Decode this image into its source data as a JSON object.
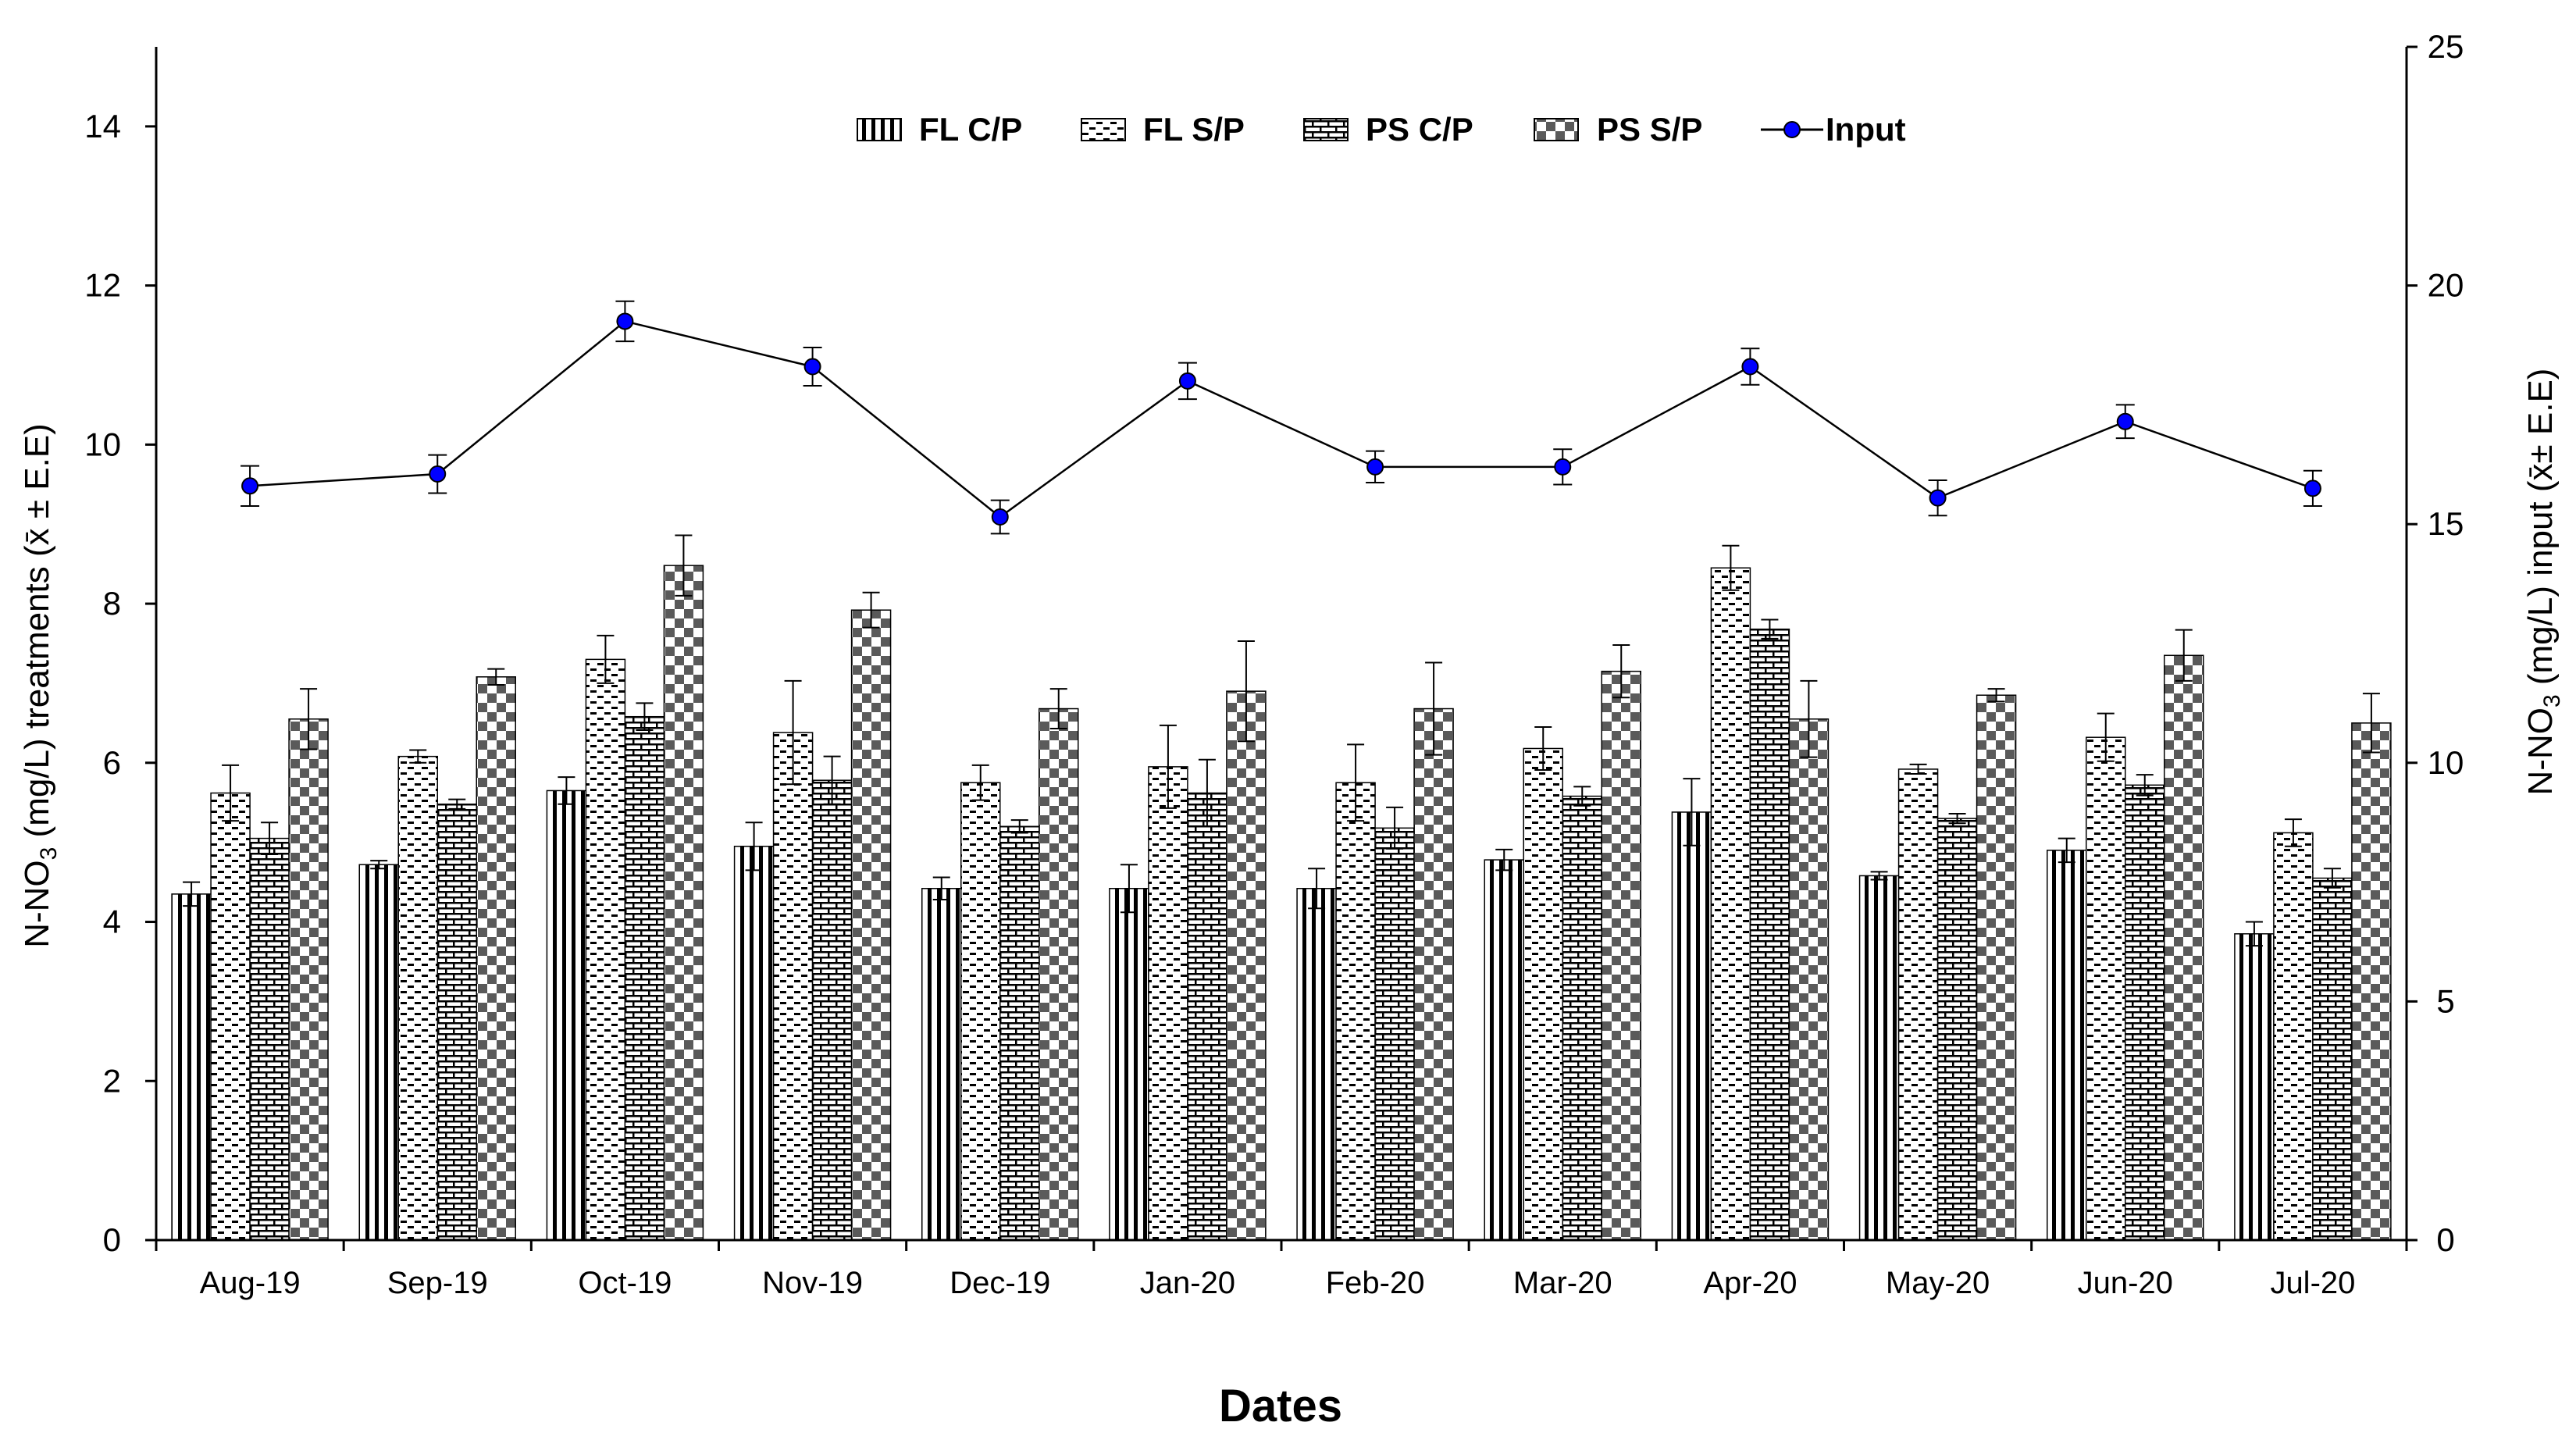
{
  "chart_data": {
    "type": "bar",
    "title": "",
    "xlabel": "Dates",
    "ylabel": {
      "prefix": "N-NO",
      "sub": "3",
      "suffix": " (mg/L) treatments (x̄ ± E.E)"
    },
    "y2label": {
      "prefix": "N-NO",
      "sub": "3",
      "suffix": " (mg/L) input (x̄± E.E)"
    },
    "ylim": [
      0,
      15
    ],
    "y2lim": [
      0,
      25
    ],
    "yticks": [
      "0",
      "2",
      "4",
      "6",
      "8",
      "10",
      "12",
      "14"
    ],
    "y2ticks": [
      "0",
      "5",
      "10",
      "15",
      "20",
      "25"
    ],
    "categories": [
      "Aug-19",
      "Sep-19",
      "Oct-19",
      "Nov-19",
      "Dec-19",
      "Jan-20",
      "Feb-20",
      "Mar-20",
      "Apr-20",
      "May-20",
      "Jun-20",
      "Jul-20"
    ],
    "series": [
      {
        "name": "FL C/P",
        "pattern": "vlines",
        "values": [
          4.35,
          4.72,
          5.65,
          4.95,
          4.42,
          4.42,
          4.42,
          4.78,
          5.38,
          4.58,
          4.9,
          3.85
        ],
        "errors": [
          0.15,
          0.05,
          0.17,
          0.3,
          0.14,
          0.3,
          0.25,
          0.13,
          0.42,
          0.05,
          0.15,
          0.15
        ]
      },
      {
        "name": "FL S/P",
        "pattern": "dashes",
        "values": [
          5.62,
          6.08,
          7.3,
          6.38,
          5.75,
          5.95,
          5.75,
          6.18,
          8.45,
          5.92,
          6.32,
          5.12
        ],
        "errors": [
          0.35,
          0.08,
          0.3,
          0.65,
          0.22,
          0.52,
          0.48,
          0.27,
          0.28,
          0.06,
          0.3,
          0.17
        ]
      },
      {
        "name": "PS C/P",
        "pattern": "bricks",
        "values": [
          5.05,
          5.48,
          6.58,
          5.78,
          5.2,
          5.62,
          5.18,
          5.58,
          7.68,
          5.3,
          5.72,
          4.55
        ],
        "errors": [
          0.2,
          0.06,
          0.17,
          0.3,
          0.08,
          0.42,
          0.26,
          0.12,
          0.12,
          0.06,
          0.13,
          0.12
        ]
      },
      {
        "name": "PS S/P",
        "pattern": "checker",
        "values": [
          6.55,
          7.08,
          8.48,
          7.92,
          6.68,
          6.9,
          6.68,
          7.15,
          6.55,
          6.85,
          7.35,
          6.5
        ],
        "errors": [
          0.38,
          0.1,
          0.38,
          0.22,
          0.25,
          0.63,
          0.58,
          0.33,
          0.48,
          0.08,
          0.32,
          0.37
        ]
      }
    ],
    "line_series": {
      "name": "Input",
      "axis": "right",
      "color": "#0000ff",
      "values": [
        15.8,
        16.05,
        19.25,
        18.3,
        15.15,
        18.0,
        16.2,
        16.2,
        18.3,
        15.55,
        17.15,
        15.75
      ],
      "errors": [
        0.42,
        0.4,
        0.42,
        0.4,
        0.35,
        0.38,
        0.33,
        0.37,
        0.38,
        0.37,
        0.35,
        0.37
      ]
    },
    "legend": {
      "position": "top-center",
      "entries": [
        "FL C/P",
        "FL S/P",
        "PS C/P",
        "PS S/P",
        "Input"
      ]
    },
    "grid": false
  }
}
